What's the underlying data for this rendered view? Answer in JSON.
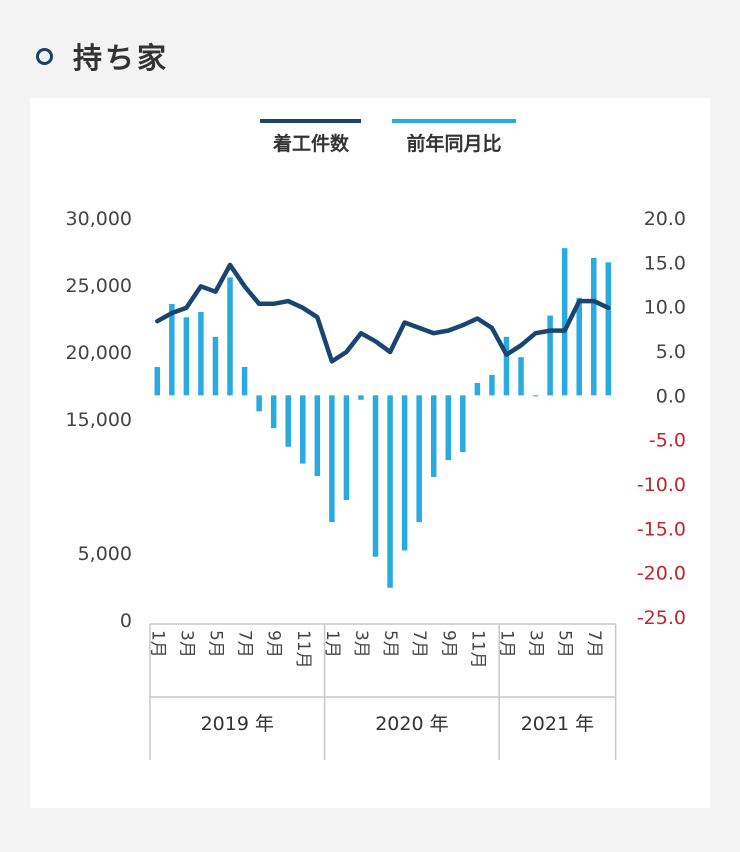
{
  "header": {
    "title": "持ち家"
  },
  "colors": {
    "line": "#1a4570",
    "bar": "#29abe2",
    "neg_tick": "#c0272d",
    "axis_text": "#444444"
  },
  "chart_data": {
    "type": "bar+line",
    "legend": [
      "着工件数",
      "前年同月比"
    ],
    "legend_position": "top-center",
    "grid": false,
    "left_axis": {
      "ylim": [
        0,
        30000
      ],
      "ticks": [
        0,
        5000,
        15000,
        20000,
        25000,
        30000
      ],
      "tick_labels": [
        "0",
        "5,000",
        "15,000",
        "20,000",
        "25,000",
        "30,000"
      ]
    },
    "right_axis": {
      "ylim": [
        -25,
        20
      ],
      "ticks": [
        20,
        15,
        10,
        5,
        0,
        -5,
        -10,
        -15,
        -20,
        -25
      ],
      "tick_labels": [
        "20.0",
        "15.0",
        "10.0",
        "5.0",
        "0.0",
        "-5.0",
        "-10.0",
        "-15.0",
        "-20.0",
        "-25.0"
      ]
    },
    "x_month_labels": [
      "1月",
      "",
      "3月",
      "",
      "5月",
      "",
      "7月",
      "",
      "9月",
      "",
      "11月",
      "",
      "1月",
      "",
      "3月",
      "",
      "5月",
      "",
      "7月",
      "",
      "9月",
      "",
      "11月",
      "",
      "1月",
      "",
      "3月",
      "",
      "5月",
      "",
      "7月",
      ""
    ],
    "year_groups": [
      {
        "label": "2019 年",
        "count": 12
      },
      {
        "label": "2020 年",
        "count": 12
      },
      {
        "label": "2021 年",
        "count": 8
      }
    ],
    "series": [
      {
        "name": "着工件数",
        "type": "line",
        "axis": "left",
        "values": [
          22300,
          22900,
          23300,
          24900,
          24500,
          26500,
          24900,
          23600,
          23600,
          23800,
          23300,
          22600,
          19300,
          20000,
          21400,
          20800,
          20000,
          22200,
          21800,
          21400,
          21600,
          22000,
          22500,
          21800,
          19800,
          20500,
          21400,
          21600,
          21600,
          23800,
          23800,
          23300
        ]
      },
      {
        "name": "前年同月比",
        "type": "bar",
        "axis": "right",
        "values": [
          3.2,
          10.3,
          8.8,
          9.4,
          6.6,
          13.3,
          3.2,
          -1.8,
          -3.7,
          -5.8,
          -7.7,
          -9.1,
          -14.3,
          -11.8,
          -0.5,
          -18.2,
          -21.7,
          -17.5,
          -14.3,
          -9.2,
          -7.3,
          -6.4,
          1.4,
          2.3,
          6.6,
          4.3,
          -0.1,
          9.0,
          16.6,
          11.0,
          15.5,
          15.0
        ]
      }
    ]
  }
}
